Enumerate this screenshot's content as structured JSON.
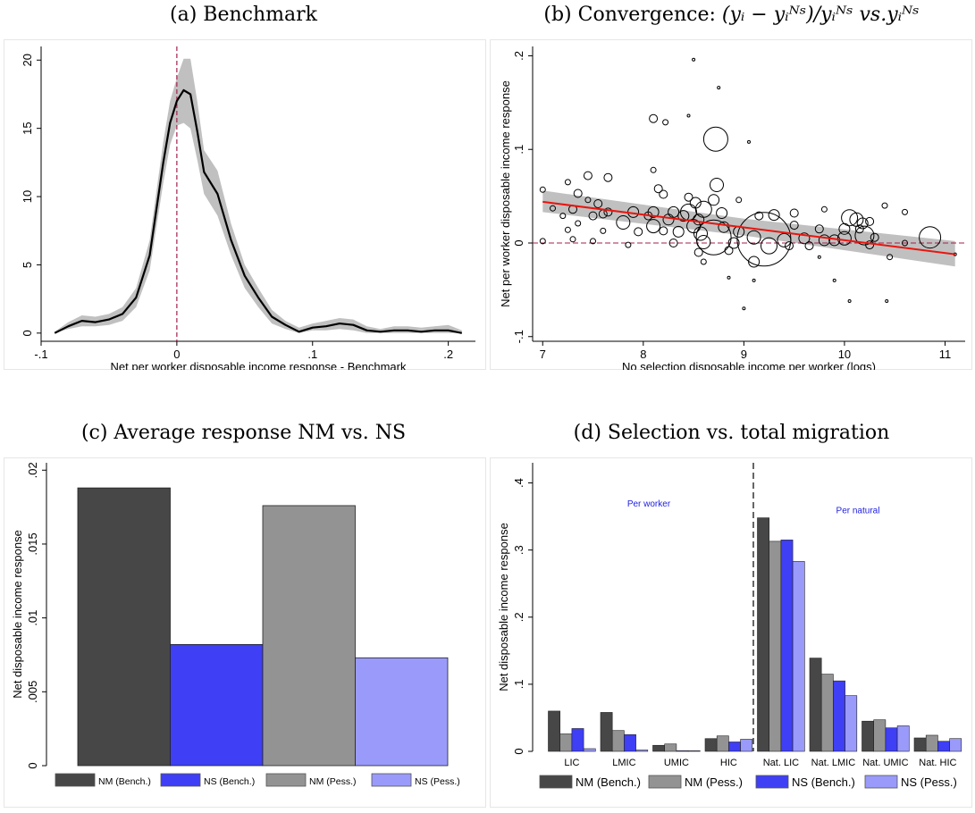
{
  "captions": {
    "a": "(a) Benchmark",
    "b_prefix": "(b) Convergence: ",
    "b_formula": "(yᵢ − yᵢᴺˢ)/yᵢᴺˢ vs.yᵢᴺˢ",
    "c": "(c) Average response NM vs. NS",
    "d": "(d) Selection vs. total migration"
  },
  "colors": {
    "dark_gray": "#474747",
    "mid_gray": "#939393",
    "blue": "#3f3ff5",
    "light_blue": "#9a9afa",
    "band": "#c0c0c0",
    "ref_line": "#a5204a",
    "fit_line": "#e8160f",
    "annotation": "#2020e0"
  },
  "chart_data": [
    {
      "id": "a",
      "type": "line",
      "title": "(a) Benchmark",
      "xlabel": "Net per worker disposable income response - Benchmark",
      "ylabel": "",
      "xlim": [
        -0.1,
        0.22
      ],
      "ylim": [
        -0.6,
        21
      ],
      "xticks": [
        -0.1,
        0,
        0.1,
        0.2
      ],
      "xtick_labels": [
        "-.1",
        "0",
        ".1",
        ".2"
      ],
      "yticks": [
        0,
        5,
        10,
        15,
        20
      ],
      "ytick_labels": [
        "0",
        "5",
        "10",
        "15",
        "20"
      ],
      "grid": false,
      "vline": 0,
      "series": [
        {
          "style": "density with confidence band",
          "x": [
            -0.09,
            -0.08,
            -0.07,
            -0.06,
            -0.05,
            -0.04,
            -0.03,
            -0.02,
            -0.01,
            -0.005,
            0.0,
            0.005,
            0.01,
            0.015,
            0.02,
            0.03,
            0.04,
            0.05,
            0.06,
            0.07,
            0.08,
            0.09,
            0.1,
            0.11,
            0.12,
            0.13,
            0.14,
            0.15,
            0.16,
            0.17,
            0.18,
            0.19,
            0.2,
            0.21
          ],
          "y": [
            0.0,
            0.5,
            0.9,
            0.8,
            1.0,
            1.4,
            2.6,
            5.7,
            12.5,
            15.4,
            17.0,
            17.8,
            17.5,
            14.8,
            11.8,
            10.2,
            6.8,
            4.2,
            2.6,
            1.2,
            0.6,
            0.1,
            0.4,
            0.5,
            0.7,
            0.6,
            0.2,
            0.1,
            0.2,
            0.2,
            0.1,
            0.2,
            0.2,
            0.0
          ],
          "lower": [
            0.0,
            0.3,
            0.5,
            0.5,
            0.6,
            0.9,
            1.9,
            4.6,
            11.0,
            13.8,
            15.2,
            15.4,
            15.0,
            12.7,
            10.2,
            8.6,
            5.7,
            3.3,
            1.9,
            0.7,
            0.3,
            0.0,
            0.2,
            0.2,
            0.3,
            0.2,
            0.0,
            0.0,
            0.0,
            0.0,
            0.0,
            0.0,
            0.0,
            0.0
          ],
          "upper": [
            0.1,
            0.8,
            1.3,
            1.2,
            1.4,
            1.9,
            3.3,
            6.8,
            14.0,
            17.0,
            18.7,
            20.1,
            20.1,
            17.0,
            13.4,
            11.9,
            8.0,
            5.0,
            3.3,
            1.7,
            0.9,
            0.4,
            0.7,
            0.9,
            1.1,
            1.0,
            0.5,
            0.3,
            0.5,
            0.5,
            0.4,
            0.5,
            0.6,
            0.2
          ]
        }
      ]
    },
    {
      "id": "b",
      "type": "scatter",
      "xlabel": "No selection disposable income per worker (logs)",
      "ylabel": "Net per worker disposable income response",
      "xlim": [
        6.9,
        11.2
      ],
      "ylim": [
        -0.105,
        0.21
      ],
      "xticks": [
        7,
        8,
        9,
        10,
        11
      ],
      "xtick_labels": [
        "7",
        "8",
        "9",
        "10",
        "11"
      ],
      "yticks": [
        -0.1,
        0,
        0.1,
        0.2
      ],
      "ytick_labels": [
        "-.1",
        "0",
        ".1",
        ".2"
      ],
      "grid": false,
      "hline": 0,
      "fit_line": {
        "x": [
          7.0,
          11.1
        ],
        "y": [
          0.044,
          -0.012
        ]
      },
      "fit_band": {
        "x": [
          7.0,
          9.0,
          11.1
        ],
        "lower": [
          0.033,
          0.008,
          -0.025
        ],
        "upper": [
          0.056,
          0.026,
          0.002
        ]
      },
      "points": [
        {
          "x": 8.5,
          "y": 0.196,
          "s": 1
        },
        {
          "x": 8.75,
          "y": 0.166,
          "s": 1
        },
        {
          "x": 8.45,
          "y": 0.136,
          "s": 1
        },
        {
          "x": 8.1,
          "y": 0.133,
          "s": 3
        },
        {
          "x": 8.22,
          "y": 0.129,
          "s": 2
        },
        {
          "x": 8.72,
          "y": 0.111,
          "s": 9
        },
        {
          "x": 9.05,
          "y": 0.108,
          "s": 1
        },
        {
          "x": 7.45,
          "y": 0.072,
          "s": 3
        },
        {
          "x": 7.65,
          "y": 0.07,
          "s": 3
        },
        {
          "x": 7.25,
          "y": 0.065,
          "s": 2
        },
        {
          "x": 8.1,
          "y": 0.078,
          "s": 2
        },
        {
          "x": 8.73,
          "y": 0.062,
          "s": 5
        },
        {
          "x": 8.15,
          "y": 0.058,
          "s": 3
        },
        {
          "x": 8.2,
          "y": 0.052,
          "s": 3
        },
        {
          "x": 7.0,
          "y": 0.057,
          "s": 2
        },
        {
          "x": 7.35,
          "y": 0.053,
          "s": 3
        },
        {
          "x": 8.45,
          "y": 0.049,
          "s": 3
        },
        {
          "x": 7.45,
          "y": 0.046,
          "s": 2
        },
        {
          "x": 8.7,
          "y": 0.046,
          "s": 4
        },
        {
          "x": 8.95,
          "y": 0.046,
          "s": 2
        },
        {
          "x": 7.55,
          "y": 0.042,
          "s": 3
        },
        {
          "x": 8.52,
          "y": 0.043,
          "s": 4
        },
        {
          "x": 7.1,
          "y": 0.037,
          "s": 2
        },
        {
          "x": 7.3,
          "y": 0.036,
          "s": 3
        },
        {
          "x": 7.65,
          "y": 0.033,
          "s": 3
        },
        {
          "x": 7.9,
          "y": 0.033,
          "s": 4
        },
        {
          "x": 8.1,
          "y": 0.033,
          "s": 4
        },
        {
          "x": 8.3,
          "y": 0.033,
          "s": 4
        },
        {
          "x": 8.45,
          "y": 0.033,
          "s": 6
        },
        {
          "x": 8.6,
          "y": 0.036,
          "s": 6
        },
        {
          "x": 9.8,
          "y": 0.036,
          "s": 2
        },
        {
          "x": 10.4,
          "y": 0.04,
          "s": 2
        },
        {
          "x": 7.2,
          "y": 0.029,
          "s": 2
        },
        {
          "x": 7.5,
          "y": 0.029,
          "s": 3
        },
        {
          "x": 7.6,
          "y": 0.031,
          "s": 3
        },
        {
          "x": 8.05,
          "y": 0.029,
          "s": 3
        },
        {
          "x": 8.4,
          "y": 0.029,
          "s": 4
        },
        {
          "x": 8.25,
          "y": 0.025,
          "s": 4
        },
        {
          "x": 8.55,
          "y": 0.025,
          "s": 4
        },
        {
          "x": 8.78,
          "y": 0.032,
          "s": 4
        },
        {
          "x": 9.3,
          "y": 0.03,
          "s": 4
        },
        {
          "x": 9.15,
          "y": 0.029,
          "s": 3
        },
        {
          "x": 9.5,
          "y": 0.032,
          "s": 3
        },
        {
          "x": 10.05,
          "y": 0.027,
          "s": 6
        },
        {
          "x": 10.12,
          "y": 0.025,
          "s": 5
        },
        {
          "x": 10.18,
          "y": 0.021,
          "s": 4
        },
        {
          "x": 10.25,
          "y": 0.023,
          "s": 3
        },
        {
          "x": 10.6,
          "y": 0.033,
          "s": 2
        },
        {
          "x": 7.35,
          "y": 0.021,
          "s": 2
        },
        {
          "x": 7.8,
          "y": 0.022,
          "s": 5
        },
        {
          "x": 8.1,
          "y": 0.018,
          "s": 5
        },
        {
          "x": 8.5,
          "y": 0.018,
          "s": 5
        },
        {
          "x": 8.2,
          "y": 0.013,
          "s": 3
        },
        {
          "x": 8.8,
          "y": 0.017,
          "s": 4
        },
        {
          "x": 9.75,
          "y": 0.015,
          "s": 3
        },
        {
          "x": 9.5,
          "y": 0.019,
          "s": 3
        },
        {
          "x": 10.0,
          "y": 0.015,
          "s": 4
        },
        {
          "x": 10.15,
          "y": 0.015,
          "s": 3
        },
        {
          "x": 7.25,
          "y": 0.014,
          "s": 2
        },
        {
          "x": 7.6,
          "y": 0.013,
          "s": 2
        },
        {
          "x": 7.95,
          "y": 0.012,
          "s": 3
        },
        {
          "x": 8.35,
          "y": 0.012,
          "s": 4
        },
        {
          "x": 8.7,
          "y": 0.006,
          "s": 13
        },
        {
          "x": 9.2,
          "y": 0.004,
          "s": 20
        },
        {
          "x": 8.57,
          "y": 0.01,
          "s": 5
        },
        {
          "x": 8.95,
          "y": 0.012,
          "s": 4
        },
        {
          "x": 9.1,
          "y": 0.006,
          "s": 5
        },
        {
          "x": 9.4,
          "y": 0.003,
          "s": 5
        },
        {
          "x": 9.6,
          "y": 0.005,
          "s": 4
        },
        {
          "x": 9.8,
          "y": 0.003,
          "s": 4
        },
        {
          "x": 9.9,
          "y": 0.003,
          "s": 4
        },
        {
          "x": 10.0,
          "y": 0.005,
          "s": 5
        },
        {
          "x": 10.2,
          "y": 0.008,
          "s": 7
        },
        {
          "x": 10.3,
          "y": 0.006,
          "s": 3
        },
        {
          "x": 10.85,
          "y": 0.006,
          "s": 8
        },
        {
          "x": 7.3,
          "y": 0.004,
          "s": 2
        },
        {
          "x": 7.0,
          "y": 0.002,
          "s": 2
        },
        {
          "x": 7.5,
          "y": 0.002,
          "s": 2
        },
        {
          "x": 7.85,
          "y": -0.002,
          "s": 2
        },
        {
          "x": 8.3,
          "y": 0.0,
          "s": 3
        },
        {
          "x": 8.6,
          "y": 0.001,
          "s": 5
        },
        {
          "x": 8.9,
          "y": 0.0,
          "s": 4
        },
        {
          "x": 9.25,
          "y": -0.003,
          "s": 6
        },
        {
          "x": 9.45,
          "y": -0.003,
          "s": 3
        },
        {
          "x": 9.65,
          "y": -0.003,
          "s": 3
        },
        {
          "x": 10.25,
          "y": -0.002,
          "s": 3
        },
        {
          "x": 8.85,
          "y": -0.008,
          "s": 3
        },
        {
          "x": 8.55,
          "y": -0.01,
          "s": 3
        },
        {
          "x": 9.1,
          "y": -0.02,
          "s": 4
        },
        {
          "x": 9.75,
          "y": -0.015,
          "s": 1
        },
        {
          "x": 10.45,
          "y": -0.015,
          "s": 2
        },
        {
          "x": 8.85,
          "y": -0.037,
          "s": 1
        },
        {
          "x": 9.1,
          "y": -0.04,
          "s": 1
        },
        {
          "x": 9.9,
          "y": -0.04,
          "s": 1
        },
        {
          "x": 10.05,
          "y": -0.062,
          "s": 1
        },
        {
          "x": 10.42,
          "y": -0.062,
          "s": 1
        },
        {
          "x": 9.0,
          "y": -0.07,
          "s": 1
        },
        {
          "x": 8.6,
          "y": -0.02,
          "s": 2
        },
        {
          "x": 11.1,
          "y": -0.012,
          "s": 1
        },
        {
          "x": 10.6,
          "y": 0.0,
          "s": 2
        }
      ]
    },
    {
      "id": "c",
      "type": "bar",
      "xlabel": "",
      "ylabel": "Net disposable income response",
      "ylim": [
        0,
        0.0205
      ],
      "yticks": [
        0,
        0.005,
        0.01,
        0.015,
        0.02
      ],
      "ytick_labels": [
        "0",
        ".005",
        ".01",
        ".015",
        ".02"
      ],
      "grid": false,
      "legend_placement": "bottom",
      "series": [
        {
          "name": "NM (Bench.)",
          "value": 0.0188,
          "color_key": "dark_gray"
        },
        {
          "name": "NS (Bench.)",
          "value": 0.0082,
          "color_key": "blue"
        },
        {
          "name": "NM (Pess.)",
          "value": 0.0176,
          "color_key": "mid_gray"
        },
        {
          "name": "NS (Pess.)",
          "value": 0.0073,
          "color_key": "light_blue"
        }
      ]
    },
    {
      "id": "d",
      "type": "bar",
      "xlabel": "",
      "ylabel": "Net disposable income response",
      "ylim": [
        0,
        0.43
      ],
      "yticks": [
        0,
        0.1,
        0.2,
        0.3,
        0.4
      ],
      "ytick_labels": [
        "0",
        ".1",
        ".2",
        ".3",
        ".4"
      ],
      "grid": false,
      "legend_placement": "bottom",
      "categories": [
        "LIC",
        "LMIC",
        "UMIC",
        "HIC",
        "Nat. LIC",
        "Nat. LMIC",
        "Nat. UMIC",
        "Nat. HIC"
      ],
      "group_labels": [
        "Per worker",
        "Per natural"
      ],
      "series": [
        {
          "name": "NM (Bench.)",
          "color_key": "dark_gray",
          "values": [
            0.06,
            0.058,
            0.009,
            0.019,
            0.348,
            0.139,
            0.045,
            0.02
          ]
        },
        {
          "name": "NM (Pess.)",
          "color_key": "mid_gray",
          "values": [
            0.026,
            0.031,
            0.011,
            0.023,
            0.313,
            0.115,
            0.047,
            0.024
          ]
        },
        {
          "name": "NS (Bench.)",
          "color_key": "blue",
          "values": [
            0.034,
            0.025,
            0.001,
            0.014,
            0.315,
            0.105,
            0.035,
            0.015
          ]
        },
        {
          "name": "NS (Pess.)",
          "color_key": "light_blue",
          "values": [
            0.004,
            0.002,
            0.001,
            0.018,
            0.283,
            0.083,
            0.038,
            0.019
          ]
        }
      ]
    }
  ]
}
